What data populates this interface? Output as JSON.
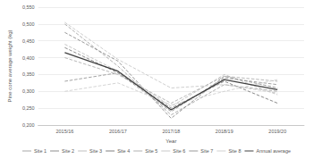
{
  "chart_data": {
    "type": "line",
    "x_label": "Year",
    "y_label": "Pine cone average weight (kg)",
    "categories": [
      "2015/16",
      "2016/17",
      "2017/18",
      "2018/19",
      "2019/20"
    ],
    "ylim": [
      0.2,
      0.55
    ],
    "yticks": [
      {
        "value": 0.2,
        "label": "0,200"
      },
      {
        "value": 0.25,
        "label": "0,250"
      },
      {
        "value": 0.3,
        "label": "0,300"
      },
      {
        "value": 0.35,
        "label": "0,350"
      },
      {
        "value": 0.4,
        "label": "0,400"
      },
      {
        "value": 0.45,
        "label": "0,450"
      },
      {
        "value": 0.5,
        "label": "0,500"
      },
      {
        "value": 0.55,
        "label": "0,550"
      }
    ],
    "grid": true,
    "legend": "bottom",
    "series": [
      {
        "name": "Site 1",
        "color": "#a6a6a6",
        "line_style": "dashed",
        "values": [
          0.5,
          0.375,
          0.23,
          0.32,
          0.3
        ]
      },
      {
        "name": "Site 2",
        "color": "#8c8c8c",
        "line_style": "dashed",
        "values": [
          0.475,
          0.39,
          0.22,
          0.345,
          0.31
        ]
      },
      {
        "name": "Site 3",
        "color": "#bfbfbf",
        "line_style": "dashed",
        "values": [
          0.44,
          0.36,
          0.255,
          0.35,
          0.29
        ]
      },
      {
        "name": "Site 4",
        "color": "#7f7f7f",
        "line_style": "dashed",
        "values": [
          0.43,
          0.355,
          0.25,
          0.33,
          0.265
        ]
      },
      {
        "name": "Site 5",
        "color": "#b0b0b0",
        "line_style": "dashed",
        "values": [
          0.4,
          0.35,
          0.265,
          0.345,
          0.33
        ]
      },
      {
        "name": "Site 6",
        "color": "#c8c8c8",
        "line_style": "dashed",
        "values": [
          0.505,
          0.395,
          0.31,
          0.32,
          0.295
        ]
      },
      {
        "name": "Site 7",
        "color": "#999999",
        "line_style": "dashed",
        "values": [
          0.33,
          0.355,
          0.24,
          0.34,
          0.32
        ]
      },
      {
        "name": "Site 8",
        "color": "#d0d0d0",
        "line_style": "dashed",
        "values": [
          0.3,
          0.325,
          0.26,
          0.3,
          0.335
        ]
      },
      {
        "name": "Annual average",
        "color": "#404040",
        "line_style": "solid",
        "values": [
          0.415,
          0.36,
          0.245,
          0.335,
          0.305
        ]
      }
    ]
  }
}
